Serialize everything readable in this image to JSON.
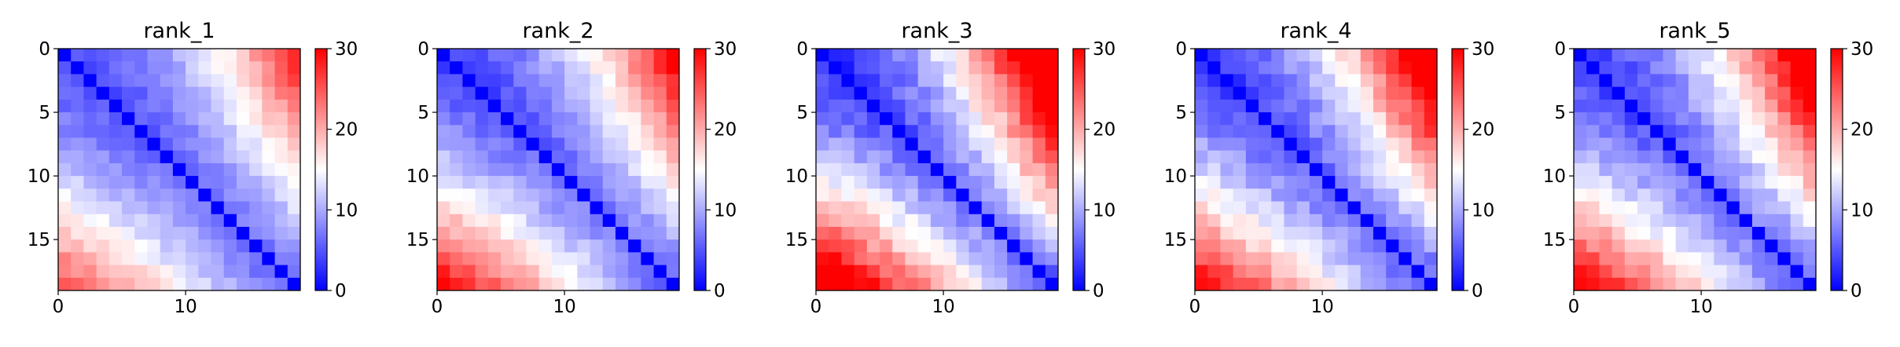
{
  "colormap": {
    "name": "bwr",
    "low": "#0000ff",
    "mid": "#ffffff",
    "high": "#ff0000"
  },
  "chart_data": [
    {
      "type": "heatmap",
      "title": "rank_1",
      "size": 19,
      "xticks": [
        0,
        10
      ],
      "yticks": [
        0,
        5,
        10,
        15
      ],
      "vmin": 0,
      "vmax": 30,
      "colorbar_ticks": [
        0,
        10,
        20,
        30
      ],
      "shape": {
        "edge": 4.0,
        "slope": 0.42,
        "lower_boost": 0.055,
        "power": 1.9,
        "upper_boost": 0.012,
        "upper_power": 2.5
      },
      "noise": 1.2
    },
    {
      "type": "heatmap",
      "title": "rank_2",
      "size": 19,
      "xticks": [
        0,
        10
      ],
      "yticks": [
        0,
        5,
        10,
        15
      ],
      "vmin": 0,
      "vmax": 30,
      "colorbar_ticks": [
        0,
        10,
        20,
        30
      ],
      "shape": {
        "edge": 3.5,
        "slope": 0.45,
        "lower_boost": 0.075,
        "power": 1.9,
        "upper_boost": 0.014,
        "upper_power": 2.5
      },
      "noise": 1.3
    },
    {
      "type": "heatmap",
      "title": "rank_3",
      "size": 19,
      "xticks": [
        0,
        10
      ],
      "yticks": [
        0,
        5,
        10,
        15
      ],
      "vmin": 0,
      "vmax": 30,
      "colorbar_ticks": [
        0,
        10,
        20,
        30
      ],
      "shape": {
        "edge": 2.5,
        "slope": 0.55,
        "lower_boost": 0.095,
        "power": 1.9,
        "upper_boost": 0.022,
        "upper_power": 2.5
      },
      "noise": 1.8
    },
    {
      "type": "heatmap",
      "title": "rank_4",
      "size": 19,
      "xticks": [
        0,
        10
      ],
      "yticks": [
        0,
        5,
        10,
        15
      ],
      "vmin": 0,
      "vmax": 30,
      "colorbar_ticks": [
        0,
        10,
        20,
        30
      ],
      "shape": {
        "edge": 2.8,
        "slope": 0.55,
        "lower_boost": 0.07,
        "power": 1.9,
        "upper_boost": 0.018,
        "upper_power": 2.5
      },
      "noise": 1.6
    },
    {
      "type": "heatmap",
      "title": "rank_5",
      "size": 19,
      "xticks": [
        0,
        10
      ],
      "yticks": [
        0,
        5,
        10,
        15
      ],
      "vmin": 0,
      "vmax": 30,
      "colorbar_ticks": [
        0,
        10,
        20,
        30
      ],
      "shape": {
        "edge": 3.0,
        "slope": 0.52,
        "lower_boost": 0.075,
        "power": 1.9,
        "upper_boost": 0.018,
        "upper_power": 2.5
      },
      "noise": 1.6
    }
  ]
}
